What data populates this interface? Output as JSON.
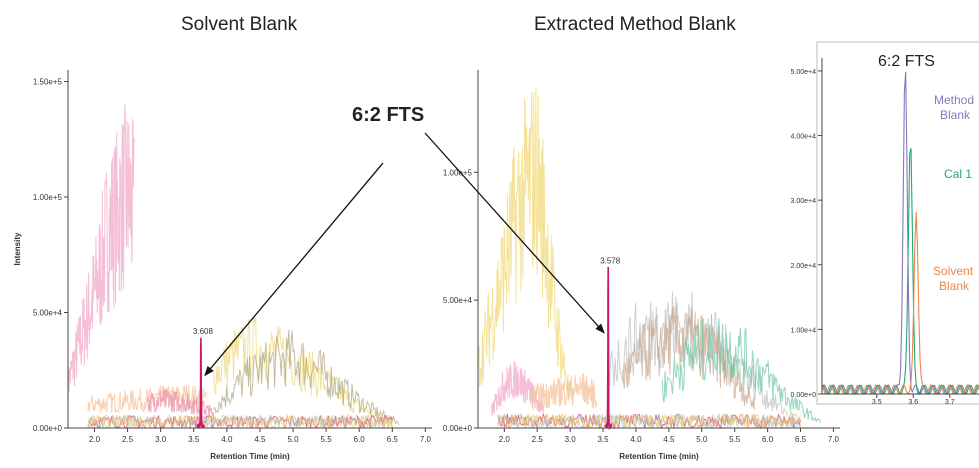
{
  "titles": {
    "left": "Solvent Blank",
    "middle": "Extracted Method Blank"
  },
  "callout": "6:2 FTS",
  "chart_data": [
    {
      "type": "line",
      "title": "Solvent Blank",
      "xlabel": "Retention Time (min)",
      "ylabel": "Intensity",
      "xlim": [
        1.6,
        7.1
      ],
      "ylim": [
        0,
        155000
      ],
      "xticks": [
        "2.0",
        "2.5",
        "3.0",
        "3.5",
        "4.0",
        "4.5",
        "5.0",
        "5.5",
        "6.0",
        "6.5",
        "7.0"
      ],
      "yticks": [
        {
          "v": 0,
          "label": "0.00e+0"
        },
        {
          "v": 50000,
          "label": "5.00e+4"
        },
        {
          "v": 100000,
          "label": "1.00e+5"
        },
        {
          "v": 150000,
          "label": "1.50e+5"
        }
      ],
      "peak": {
        "x": 3.608,
        "y": 38000,
        "label": "3.608"
      },
      "background_traces": [
        {
          "color": "#f0a8c8",
          "x": [
            1.6,
            1.8,
            2.0,
            2.1,
            2.2,
            2.3,
            2.4,
            2.5,
            2.6
          ],
          "y": [
            25000,
            50000,
            75000,
            90000,
            110000,
            115000,
            125000,
            130000,
            120000
          ]
        },
        {
          "color": "#f5c09a",
          "x": [
            1.9,
            2.2,
            2.5,
            2.8,
            3.1,
            3.4,
            3.7
          ],
          "y": [
            13000,
            14000,
            15000,
            16000,
            17000,
            18000,
            16000
          ]
        },
        {
          "color": "#f0d878",
          "x": [
            3.8,
            4.1,
            4.4,
            4.7,
            5.0,
            5.3,
            5.6,
            5.9,
            6.2,
            6.5
          ],
          "y": [
            30000,
            40000,
            45000,
            42000,
            38000,
            30000,
            22000,
            14000,
            8000,
            3000
          ]
        },
        {
          "color": "#b0a880",
          "x": [
            3.8,
            4.2,
            4.6,
            5.0,
            5.4,
            5.8,
            6.2,
            6.6
          ],
          "y": [
            12000,
            25000,
            35000,
            40000,
            32000,
            20000,
            10000,
            3000
          ]
        },
        {
          "color": "#e890a8",
          "x": [
            2.8,
            3.0,
            3.2,
            3.4,
            3.6,
            3.8
          ],
          "y": [
            14000,
            16000,
            15000,
            14000,
            12000,
            8000
          ]
        }
      ]
    },
    {
      "type": "line",
      "title": "Extracted Method Blank",
      "xlabel": "Retention Time (min)",
      "ylabel": "",
      "xlim": [
        1.6,
        7.1
      ],
      "ylim": [
        0,
        140000
      ],
      "xticks": [
        "2.0",
        "2.5",
        "3.0",
        "3.5",
        "4.0",
        "4.5",
        "5.0",
        "5.5",
        "6.0",
        "6.5",
        "7.0"
      ],
      "yticks": [
        {
          "v": 0,
          "label": "0.00e+0"
        },
        {
          "v": 50000,
          "label": "5.00e+4"
        },
        {
          "v": 100000,
          "label": "1.00e+5"
        }
      ],
      "peak": {
        "x": 3.578,
        "y": 62000,
        "label": "3.578"
      },
      "background_traces": [
        {
          "color": "#f0d878",
          "x": [
            1.6,
            1.8,
            2.0,
            2.2,
            2.4,
            2.5,
            2.6,
            2.8,
            3.0
          ],
          "y": [
            30000,
            55000,
            80000,
            110000,
            125000,
            128000,
            105000,
            50000,
            15000
          ]
        },
        {
          "color": "#f0a8c8",
          "x": [
            1.8,
            2.0,
            2.2,
            2.4,
            2.6
          ],
          "y": [
            8000,
            22000,
            25000,
            18000,
            8000
          ]
        },
        {
          "color": "#c0c0c0",
          "x": [
            3.6,
            4.0,
            4.4,
            4.8,
            5.2,
            5.6,
            6.0,
            6.4
          ],
          "y": [
            30000,
            45000,
            52000,
            50000,
            42000,
            30000,
            15000,
            5000
          ]
        },
        {
          "color": "#c8a890",
          "x": [
            3.8,
            4.2,
            4.6,
            5.0,
            5.4,
            5.8
          ],
          "y": [
            25000,
            40000,
            45000,
            42000,
            30000,
            12000
          ]
        },
        {
          "color": "#70c8a8",
          "x": [
            4.4,
            4.8,
            5.2,
            5.6,
            6.0,
            6.4,
            6.8
          ],
          "y": [
            20000,
            35000,
            42000,
            38000,
            25000,
            12000,
            3000
          ]
        },
        {
          "color": "#f5c09a",
          "x": [
            2.4,
            2.8,
            3.2,
            3.4
          ],
          "y": [
            15000,
            18000,
            20000,
            16000
          ]
        }
      ]
    },
    {
      "type": "line",
      "title": "6:2 FTS",
      "xlabel": "",
      "ylabel": "",
      "xlim": [
        3.35,
        3.78
      ],
      "ylim": [
        0,
        52000
      ],
      "xticks": [
        "3.5",
        "3.6",
        "3.7"
      ],
      "yticks": [
        {
          "v": 0,
          "label": "0.00e+0"
        },
        {
          "v": 10000,
          "label": "1.00e+4"
        },
        {
          "v": 20000,
          "label": "2.00e+4"
        },
        {
          "v": 30000,
          "label": "3.00e+4"
        },
        {
          "v": 40000,
          "label": "4.00e+4"
        },
        {
          "v": 50000,
          "label": "5.00e+4"
        }
      ],
      "series": [
        {
          "name": "Method Blank",
          "color": "#8878c0",
          "label_lines": [
            "Method",
            "Blank"
          ],
          "center": 3.578,
          "height": 50000
        },
        {
          "name": "Cal 1",
          "color": "#20a878",
          "label_lines": [
            "Cal 1"
          ],
          "center": 3.592,
          "height": 39500
        },
        {
          "name": "Solvent Blank",
          "color": "#e8884a",
          "label_lines": [
            "Solvent",
            "Blank"
          ],
          "center": 3.608,
          "height": 28000
        }
      ]
    }
  ]
}
